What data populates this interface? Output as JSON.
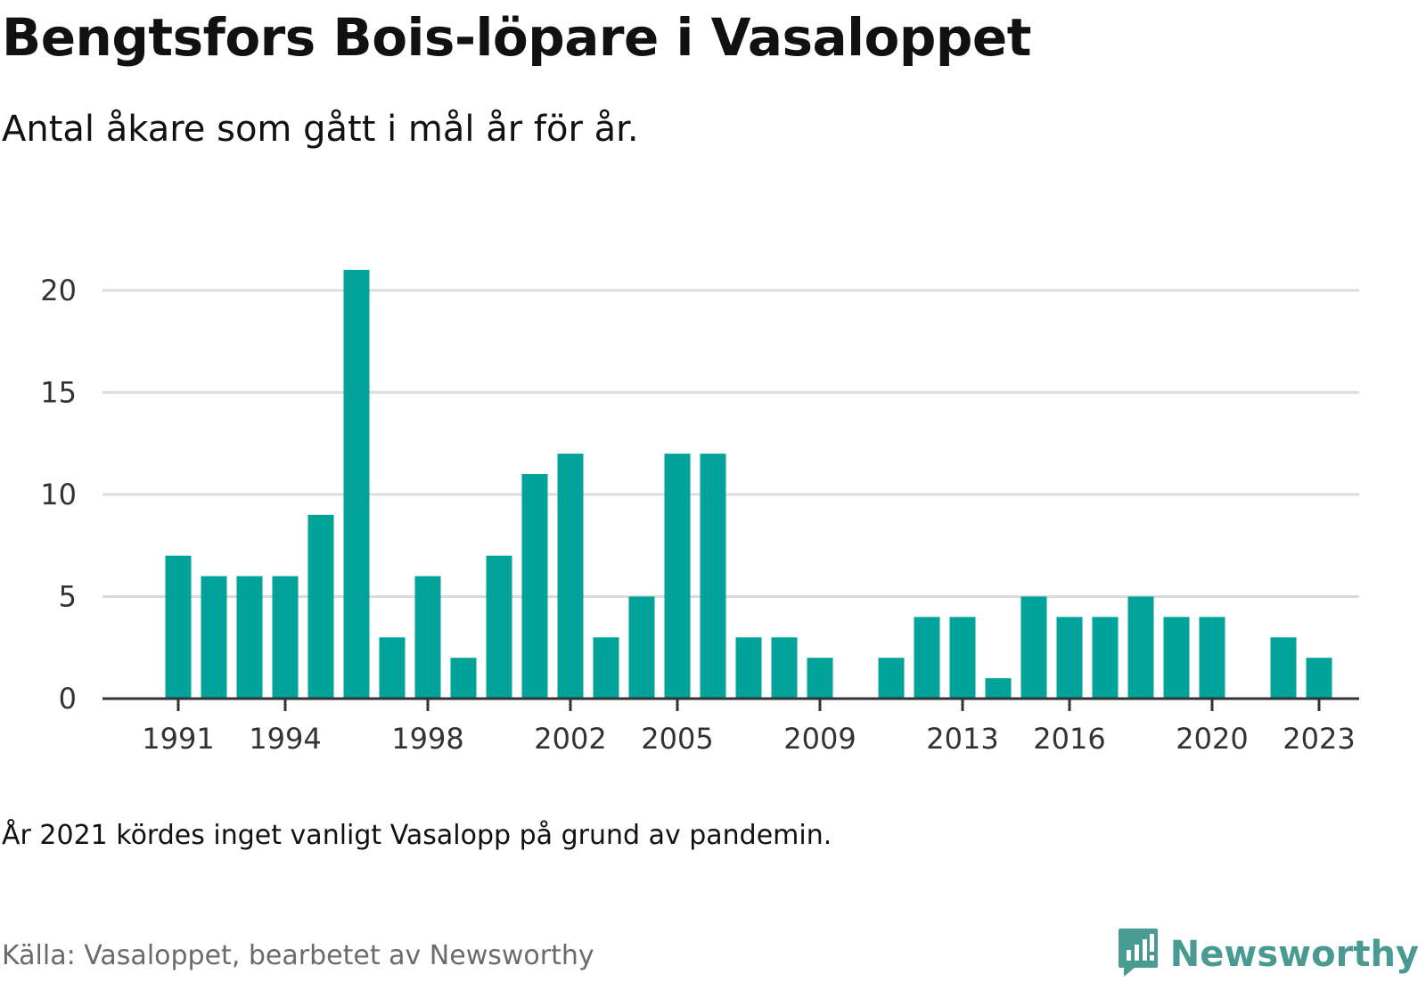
{
  "title": "Bengtsfors Bois-löpare i Vasaloppet",
  "subtitle": "Antal åkare som gått i mål år för år.",
  "note": "År 2021 kördes inget vanligt Vasalopp på grund av pandemin.",
  "source": "Källa: Vasaloppet, bearbetet av Newsworthy",
  "brand": {
    "name": "Newsworthy",
    "icon": "newsworthy-logo-icon",
    "color": "#4a9a94"
  },
  "colors": {
    "bar": "#00a39a",
    "grid": "#dcdcdc",
    "axis": "#333333"
  },
  "chart_data": {
    "type": "bar",
    "categories": [
      1991,
      1992,
      1993,
      1994,
      1995,
      1996,
      1997,
      1998,
      1999,
      2000,
      2001,
      2002,
      2003,
      2004,
      2005,
      2006,
      2007,
      2008,
      2009,
      2010,
      2011,
      2012,
      2013,
      2014,
      2015,
      2016,
      2017,
      2018,
      2019,
      2020,
      2021,
      2022,
      2023
    ],
    "values": [
      7,
      6,
      6,
      6,
      9,
      21,
      3,
      6,
      2,
      7,
      11,
      12,
      3,
      5,
      12,
      12,
      3,
      3,
      2,
      0,
      2,
      4,
      4,
      1,
      5,
      4,
      4,
      5,
      4,
      4,
      0,
      3,
      2
    ],
    "xticks": [
      "1991",
      "1994",
      "1998",
      "2002",
      "2005",
      "2009",
      "2013",
      "2016",
      "2020",
      "2023"
    ],
    "yticks": [
      "0",
      "5",
      "10",
      "15",
      "20"
    ],
    "ylim": [
      0,
      22
    ],
    "grid": true
  }
}
